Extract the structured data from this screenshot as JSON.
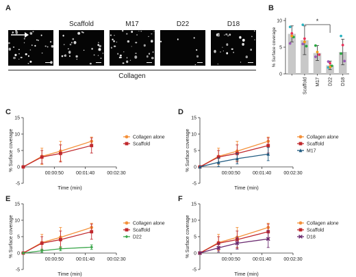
{
  "panel_letters": {
    "A": "A",
    "B": "B",
    "C": "C",
    "D": "D",
    "E": "E",
    "F": "F"
  },
  "microscopy": {
    "labels": [
      "",
      "Scaffold",
      "M17",
      "D22",
      "D18"
    ],
    "group_label": "Collagen"
  },
  "chart_data": [
    {
      "panel": "B",
      "type": "bar",
      "ylabel": "% Surface coverage",
      "ylim": [
        0,
        10
      ],
      "yticks": [
        0,
        5,
        10
      ],
      "categories": [
        "",
        "Scaffold",
        "M17",
        "D22",
        "D18"
      ],
      "values": [
        7.5,
        6.3,
        3.9,
        1.6,
        4.1
      ],
      "errors": [
        1.5,
        2.7,
        1.4,
        0.8,
        2.4
      ],
      "points": [
        [
          {
            "y": 8.8,
            "color": "#2ab3c0"
          },
          {
            "y": 7.6,
            "color": "#e8325a"
          },
          {
            "y": 6.9,
            "color": "#27a83f"
          },
          {
            "y": 5.7,
            "color": "#9b59b6"
          },
          {
            "y": 7.1,
            "color": "#f39c12"
          }
        ],
        [
          {
            "y": 9.2,
            "color": "#2ab3c0"
          },
          {
            "y": 6.6,
            "color": "#e8325a"
          },
          {
            "y": 5.2,
            "color": "#27a83f"
          },
          {
            "y": 5.6,
            "color": "#9b59b6"
          },
          {
            "y": 6.0,
            "color": "#f39c12"
          }
        ],
        [
          {
            "y": 5.3,
            "color": "#27a83f"
          },
          {
            "y": 4.1,
            "color": "#f39c12"
          },
          {
            "y": 3.6,
            "color": "#e8325a"
          },
          {
            "y": 3.2,
            "color": "#9b59b6"
          }
        ],
        [
          {
            "y": 1.2,
            "color": "#2ab3c0"
          },
          {
            "y": 2.0,
            "color": "#e8325a"
          },
          {
            "y": 1.5,
            "color": "#27a83f"
          },
          {
            "y": 2.3,
            "color": "#9b59b6"
          },
          {
            "y": 1.3,
            "color": "#f39c12"
          }
        ],
        [
          {
            "y": 7.1,
            "color": "#2ab3c0"
          },
          {
            "y": 5.4,
            "color": "#e8325a"
          },
          {
            "y": 2.4,
            "color": "#9b59b6"
          },
          {
            "y": 3.8,
            "color": "#27a83f"
          }
        ]
      ],
      "significance": {
        "from": 1,
        "to": 3,
        "label": "*"
      },
      "bar_color": "#c8c8c8"
    },
    {
      "panel": "C",
      "type": "line",
      "xlabel": "Time (min)",
      "ylabel": "% Surface coverage",
      "xlim": [
        0,
        150
      ],
      "ylim": [
        -5,
        15
      ],
      "xticks": [
        {
          "v": 50,
          "label": "00:00:50"
        },
        {
          "v": 100,
          "label": "00:01:40"
        },
        {
          "v": 150,
          "label": "00:02:30"
        }
      ],
      "yticks": [
        -5,
        0,
        5,
        10,
        15
      ],
      "series": [
        {
          "name": "Collagen alone",
          "color": "#f4913a",
          "marker": "circle",
          "x": [
            0,
            30,
            60,
            110
          ],
          "y": [
            0,
            3.2,
            4.8,
            7.8
          ],
          "err": [
            0,
            2.5,
            3.0,
            1.3
          ]
        },
        {
          "name": "Scaffold",
          "color": "#c0282d",
          "marker": "square",
          "x": [
            0,
            30,
            60,
            110
          ],
          "y": [
            0,
            3.0,
            4.1,
            6.5
          ],
          "err": [
            0,
            2.0,
            2.6,
            2.3
          ]
        }
      ]
    },
    {
      "panel": "D",
      "type": "line",
      "xlabel": "Time (min)",
      "ylabel": "% Surface coverage",
      "xlim": [
        0,
        150
      ],
      "ylim": [
        -5,
        15
      ],
      "xticks": [
        {
          "v": 50,
          "label": "00:00:50"
        },
        {
          "v": 100,
          "label": "00:01:40"
        },
        {
          "v": 150,
          "label": "00:02:30"
        }
      ],
      "yticks": [
        -5,
        0,
        5,
        10,
        15
      ],
      "series": [
        {
          "name": "Collagen alone",
          "color": "#f4913a",
          "marker": "circle",
          "x": [
            0,
            30,
            60,
            110
          ],
          "y": [
            0,
            3.2,
            4.8,
            7.8
          ],
          "err": [
            0,
            2.5,
            3.0,
            1.3
          ]
        },
        {
          "name": "Scaffold",
          "color": "#c0282d",
          "marker": "square",
          "x": [
            0,
            30,
            60,
            110
          ],
          "y": [
            0,
            3.0,
            4.1,
            6.5
          ],
          "err": [
            0,
            2.0,
            2.6,
            2.3
          ]
        },
        {
          "name": "M17",
          "color": "#1f5a80",
          "marker": "triangle",
          "x": [
            0,
            30,
            60,
            110
          ],
          "y": [
            0,
            1.4,
            2.5,
            3.9
          ],
          "err": [
            0,
            1.3,
            1.6,
            2.0
          ]
        }
      ]
    },
    {
      "panel": "E",
      "type": "line",
      "xlabel": "Time (min)",
      "ylabel": "% Surface coverage",
      "xlim": [
        0,
        150
      ],
      "ylim": [
        -5,
        15
      ],
      "xticks": [
        {
          "v": 50,
          "label": "00:00:50"
        },
        {
          "v": 100,
          "label": "00:01:40"
        },
        {
          "v": 150,
          "label": "00:02:30"
        }
      ],
      "yticks": [
        -5,
        0,
        5,
        10,
        15
      ],
      "series": [
        {
          "name": "Collagen alone",
          "color": "#f4913a",
          "marker": "circle",
          "x": [
            0,
            30,
            60,
            110
          ],
          "y": [
            0,
            3.2,
            4.8,
            7.8
          ],
          "err": [
            0,
            2.5,
            3.0,
            1.3
          ]
        },
        {
          "name": "Scaffold",
          "color": "#c0282d",
          "marker": "square",
          "x": [
            0,
            30,
            60,
            110
          ],
          "y": [
            0,
            3.0,
            4.1,
            6.5
          ],
          "err": [
            0,
            2.0,
            2.6,
            2.3
          ]
        },
        {
          "name": "D22",
          "color": "#3aa64a",
          "marker": "diamond",
          "x": [
            0,
            30,
            60,
            110
          ],
          "y": [
            0,
            0.7,
            1.3,
            1.8
          ],
          "err": [
            0,
            0.5,
            0.6,
            0.7
          ]
        }
      ]
    },
    {
      "panel": "F",
      "type": "line",
      "xlabel": "Time (min)",
      "ylabel": "% Surface coverage",
      "xlim": [
        0,
        150
      ],
      "ylim": [
        -5,
        15
      ],
      "xticks": [
        {
          "v": 50,
          "label": "00:00:50"
        },
        {
          "v": 100,
          "label": "00:01:40"
        },
        {
          "v": 150,
          "label": "00:02:30"
        }
      ],
      "yticks": [
        -5,
        0,
        5,
        10,
        15
      ],
      "series": [
        {
          "name": "Collagen alone",
          "color": "#f4913a",
          "marker": "circle",
          "x": [
            0,
            30,
            60,
            110
          ],
          "y": [
            0,
            3.2,
            4.8,
            7.8
          ],
          "err": [
            0,
            2.5,
            3.0,
            1.3
          ]
        },
        {
          "name": "Scaffold",
          "color": "#c0282d",
          "marker": "square",
          "x": [
            0,
            30,
            60,
            110
          ],
          "y": [
            0,
            3.0,
            4.1,
            6.5
          ],
          "err": [
            0,
            2.0,
            2.6,
            2.3
          ]
        },
        {
          "name": "D18",
          "color": "#6a2a6f",
          "marker": "cross",
          "x": [
            0,
            30,
            60,
            110
          ],
          "y": [
            0,
            1.6,
            3.0,
            4.3
          ],
          "err": [
            0,
            1.3,
            1.8,
            2.6
          ]
        }
      ]
    }
  ]
}
